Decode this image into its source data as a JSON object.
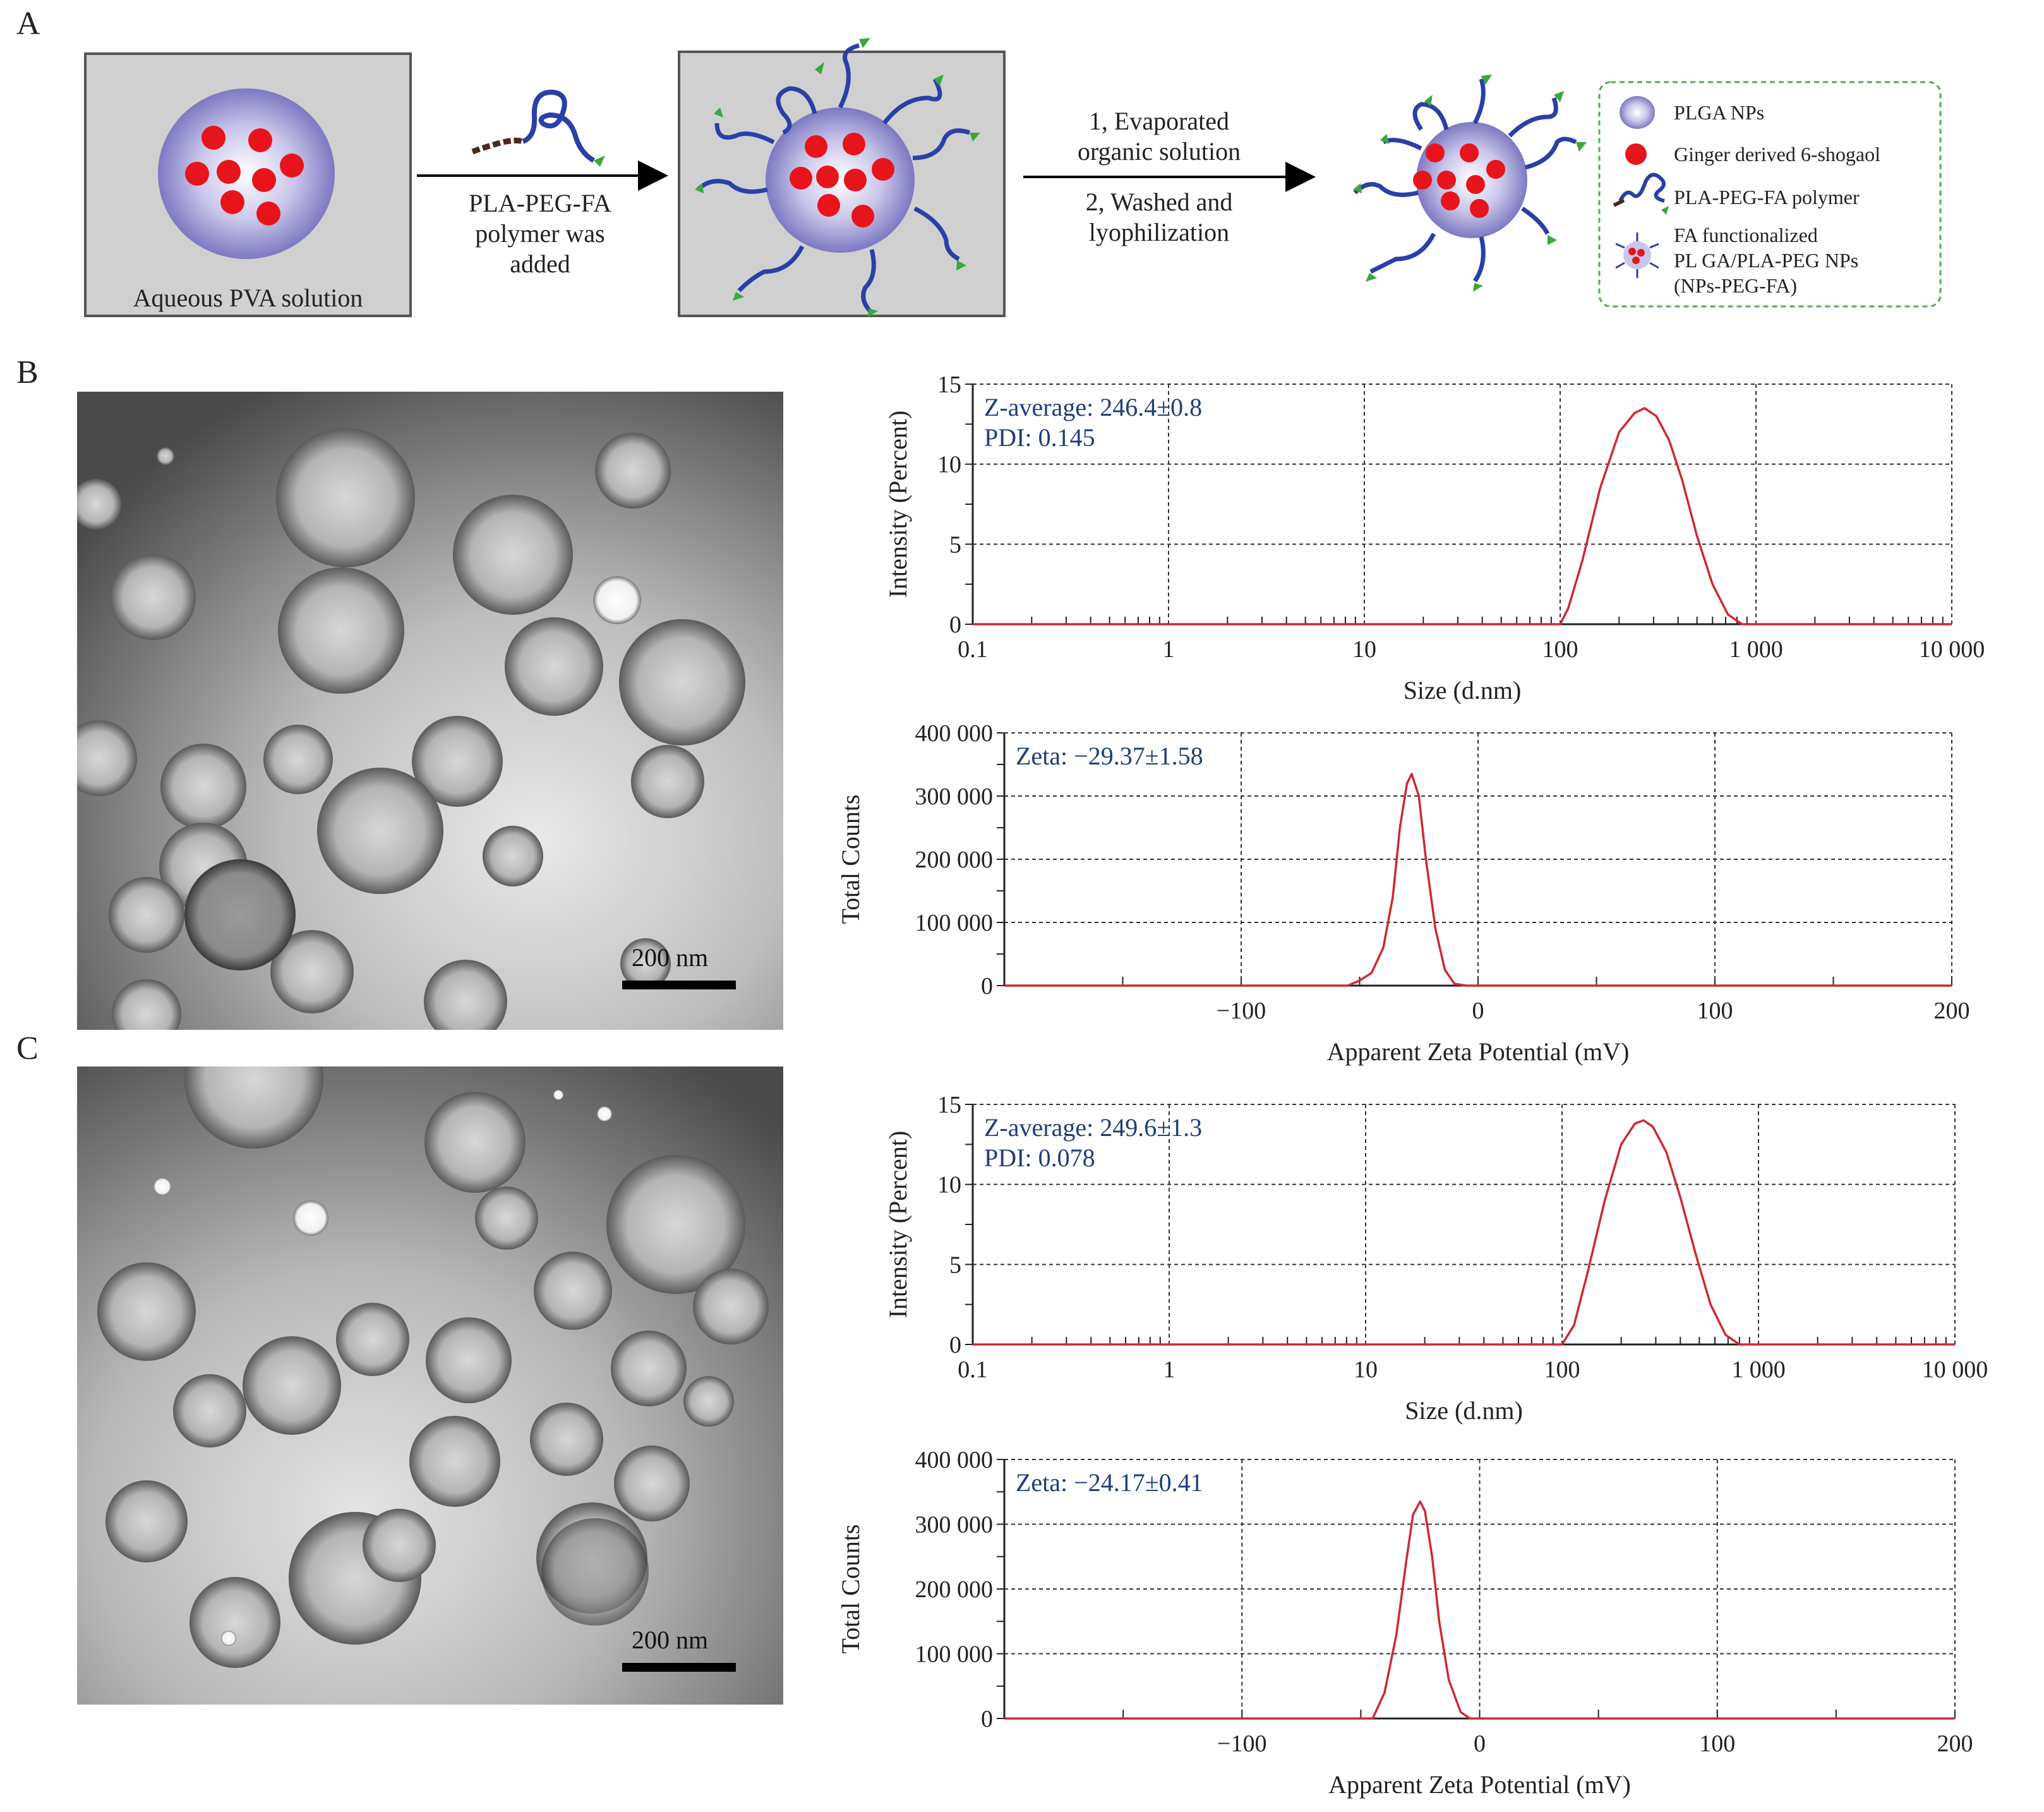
{
  "panels": {
    "a": "A",
    "b": "B",
    "c": "C"
  },
  "scheme": {
    "box1_label": "Aqueous PVA solution",
    "arrow1_label": [
      "PLA-PEG-FA",
      "polymer was",
      "added"
    ],
    "arrow2_label_top": [
      "1, Evaporated",
      "organic solution"
    ],
    "arrow2_label_bottom": [
      "2, Washed and",
      "lyophilization"
    ],
    "legend": {
      "items": [
        "PLGA NPs",
        "Ginger derived 6-shogaol",
        "PLA-PEG-FA polymer"
      ],
      "item4": [
        "FA functionalized",
        "PL GA/PLA-PEG NPs",
        "(NPs-PEG-FA)"
      ]
    },
    "colors": {
      "drug": "#e8141c",
      "polymer": "#2b3fa8",
      "linker": "#4a2a20",
      "ligand": "#3aa83a",
      "np": "#b8b8e0",
      "legend_border": "#4caf50"
    }
  },
  "tem": {
    "b": {
      "scale_label": "200 nm"
    },
    "c": {
      "scale_label": "200 nm"
    }
  },
  "chart_data": [
    {
      "id": "B-size",
      "type": "line",
      "xlabel": "Size (d.nm)",
      "ylabel": "Intensity (Percent)",
      "xscale": "log",
      "xlim": [
        0.1,
        10000
      ],
      "ylim": [
        0,
        15
      ],
      "xticks": [
        "0.1",
        "1",
        "10",
        "100",
        "1 000",
        "10 000"
      ],
      "yticks": [
        "0",
        "5",
        "10",
        "15"
      ],
      "annotation": [
        "Z-average: 246.4±0.8",
        "PDI: 0.145"
      ],
      "grid": true,
      "series": [
        {
          "color": "#cc2a36",
          "x": [
            0.1,
            100,
            110,
            130,
            160,
            200,
            240,
            270,
            310,
            360,
            420,
            500,
            600,
            720,
            850,
            10000
          ],
          "y": [
            0,
            0,
            1.0,
            4.0,
            8.5,
            12.0,
            13.2,
            13.5,
            13.0,
            11.5,
            9.0,
            5.5,
            2.5,
            0.6,
            0,
            0
          ]
        }
      ]
    },
    {
      "id": "B-zeta",
      "type": "line",
      "xlabel": "Apparent Zeta Potential (mV)",
      "ylabel": "Total Counts",
      "xlim": [
        -200,
        200
      ],
      "ylim": [
        0,
        400000
      ],
      "xticks": [
        "−100",
        "0",
        "100",
        "200"
      ],
      "yticks": [
        "0",
        "100 000",
        "200 000",
        "300 000",
        "400 000"
      ],
      "annotation": [
        "Zeta: −29.37±1.58"
      ],
      "grid": true,
      "series": [
        {
          "color": "#cc2a36",
          "x": [
            -200,
            -55,
            -50,
            -45,
            -40,
            -36,
            -33,
            -30,
            -28,
            -25,
            -22,
            -18,
            -14,
            -10,
            -5,
            200
          ],
          "y": [
            0,
            0,
            8000,
            20000,
            60000,
            140000,
            250000,
            320000,
            335000,
            300000,
            200000,
            90000,
            25000,
            3000,
            0,
            0
          ]
        }
      ]
    },
    {
      "id": "C-size",
      "type": "line",
      "xlabel": "Size (d.nm)",
      "ylabel": "Intensity (Percent)",
      "xscale": "log",
      "xlim": [
        0.1,
        10000
      ],
      "ylim": [
        0,
        15
      ],
      "xticks": [
        "0.1",
        "1",
        "10",
        "100",
        "1 000",
        "10 000"
      ],
      "yticks": [
        "0",
        "5",
        "10",
        "15"
      ],
      "annotation": [
        "Z-average: 249.6±1.3",
        "PDI: 0.078"
      ],
      "grid": true,
      "series": [
        {
          "color": "#cc2a36",
          "x": [
            0.1,
            100,
            115,
            135,
            165,
            200,
            235,
            260,
            290,
            340,
            400,
            480,
            570,
            680,
            800,
            10000
          ],
          "y": [
            0,
            0,
            1.2,
            4.5,
            9.0,
            12.5,
            13.8,
            14.0,
            13.6,
            12.0,
            9.2,
            5.6,
            2.5,
            0.6,
            0,
            0
          ]
        }
      ]
    },
    {
      "id": "C-zeta",
      "type": "line",
      "xlabel": "Apparent Zeta Potential (mV)",
      "ylabel": "Total Counts",
      "xlim": [
        -200,
        200
      ],
      "ylim": [
        0,
        400000
      ],
      "xticks": [
        "−100",
        "0",
        "100",
        "200"
      ],
      "yticks": [
        "0",
        "100 000",
        "200 000",
        "300 000",
        "400 000"
      ],
      "annotation": [
        "Zeta: −24.17±0.41"
      ],
      "grid": true,
      "series": [
        {
          "color": "#cc2a36",
          "x": [
            -200,
            -45,
            -40,
            -35,
            -31,
            -28,
            -25,
            -23,
            -20,
            -17,
            -13,
            -8,
            -4,
            200
          ],
          "y": [
            0,
            0,
            40000,
            130000,
            240000,
            315000,
            335000,
            320000,
            250000,
            150000,
            60000,
            10000,
            0,
            0
          ]
        }
      ]
    }
  ]
}
